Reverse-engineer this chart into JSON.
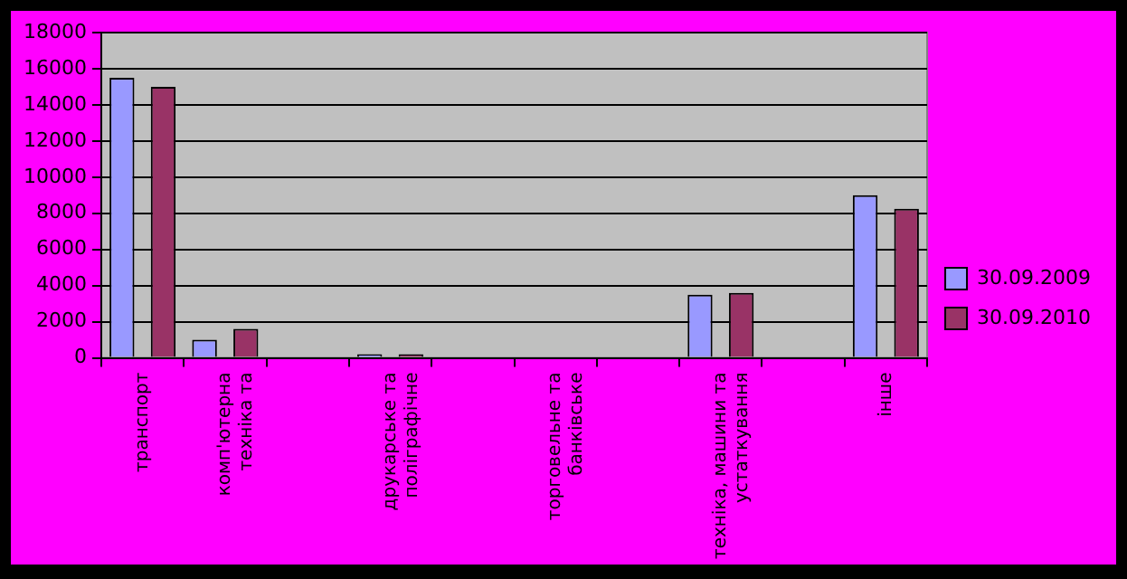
{
  "chart_data": {
    "type": "bar",
    "categories": [
      "транспорт",
      "комп'ютерна техніка та",
      null,
      "друкарське та поліграфічне",
      null,
      "торговельне та банківське",
      null,
      "техніка, машини та устаткування",
      null,
      "інше"
    ],
    "series": [
      {
        "name": "30.09.2009",
        "color": "#9999ff",
        "values": [
          15500,
          1000,
          null,
          200,
          null,
          0,
          null,
          3500,
          null,
          9000
        ]
      },
      {
        "name": "30.09.2010",
        "color": "#993366",
        "values": [
          15000,
          1600,
          null,
          200,
          null,
          0,
          null,
          3600,
          null,
          8250
        ]
      }
    ],
    "ylim": [
      0,
      18000
    ],
    "yticks": [
      0,
      2000,
      4000,
      6000,
      8000,
      10000,
      12000,
      14000,
      16000,
      18000
    ],
    "grid": "y",
    "legend": "right"
  }
}
